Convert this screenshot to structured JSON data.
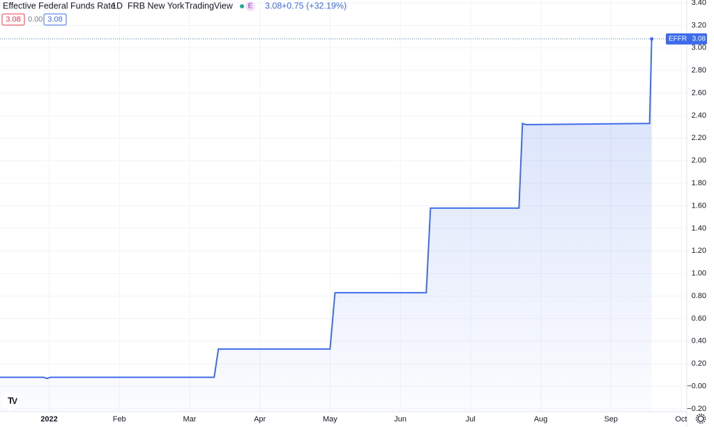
{
  "chart_data": {
    "type": "line",
    "title": "Effective Federal Funds Rate",
    "interval": "1D",
    "source": "FRB New York",
    "publisher": "TradingView",
    "badge": "E",
    "last_value_label": "3.08",
    "change_label": "+0.75 (+32.19%)",
    "status_values": [
      "3.08",
      "0.00",
      "3.08"
    ],
    "series": [
      {
        "name": "EFFR",
        "color": "#3d6bea",
        "x": [
          -0.7,
          -0.08,
          -0.03,
          0.02,
          2.35,
          2.41,
          4.0,
          4.07,
          5.37,
          5.43,
          6.69,
          6.74,
          6.79,
          8.55,
          8.58
        ],
        "values": [
          0.08,
          0.08,
          0.07,
          0.08,
          0.08,
          0.33,
          0.33,
          0.83,
          0.83,
          1.58,
          1.58,
          2.33,
          2.32,
          2.33,
          3.08
        ]
      }
    ],
    "xlim": [
      -0.7,
      9.08
    ],
    "xticks": [
      {
        "value": 0,
        "label": "2022"
      },
      {
        "value": 1,
        "label": "Feb"
      },
      {
        "value": 2,
        "label": "Mar"
      },
      {
        "value": 3,
        "label": "Apr"
      },
      {
        "value": 4,
        "label": "May"
      },
      {
        "value": 5,
        "label": "Jun"
      },
      {
        "value": 6,
        "label": "Jul"
      },
      {
        "value": 7,
        "label": "Aug"
      },
      {
        "value": 8,
        "label": "Sep"
      },
      {
        "value": 9,
        "label": "Oct"
      }
    ],
    "ylim": [
      -0.2,
      3.4
    ],
    "yticks": [
      {
        "value": 3.4,
        "label": "3.40"
      },
      {
        "value": 3.2,
        "label": "3.20"
      },
      {
        "value": 3.0,
        "label": "3.00"
      },
      {
        "value": 2.8,
        "label": "2.80"
      },
      {
        "value": 2.6,
        "label": "2.60"
      },
      {
        "value": 2.4,
        "label": "2.40"
      },
      {
        "value": 2.2,
        "label": "2.20"
      },
      {
        "value": 2.0,
        "label": "2.00"
      },
      {
        "value": 1.8,
        "label": "1.80"
      },
      {
        "value": 1.6,
        "label": "1.60"
      },
      {
        "value": 1.4,
        "label": "1.40"
      },
      {
        "value": 1.2,
        "label": "1.20"
      },
      {
        "value": 1.0,
        "label": "1.00"
      },
      {
        "value": 0.8,
        "label": "0.80"
      },
      {
        "value": 0.6,
        "label": "0.60"
      },
      {
        "value": 0.4,
        "label": "0.40"
      },
      {
        "value": 0.2,
        "label": "0.20"
      },
      {
        "value": 0,
        "label": "−0.00"
      },
      {
        "value": -0.2,
        "label": "−0.20"
      }
    ],
    "grid": true
  }
}
